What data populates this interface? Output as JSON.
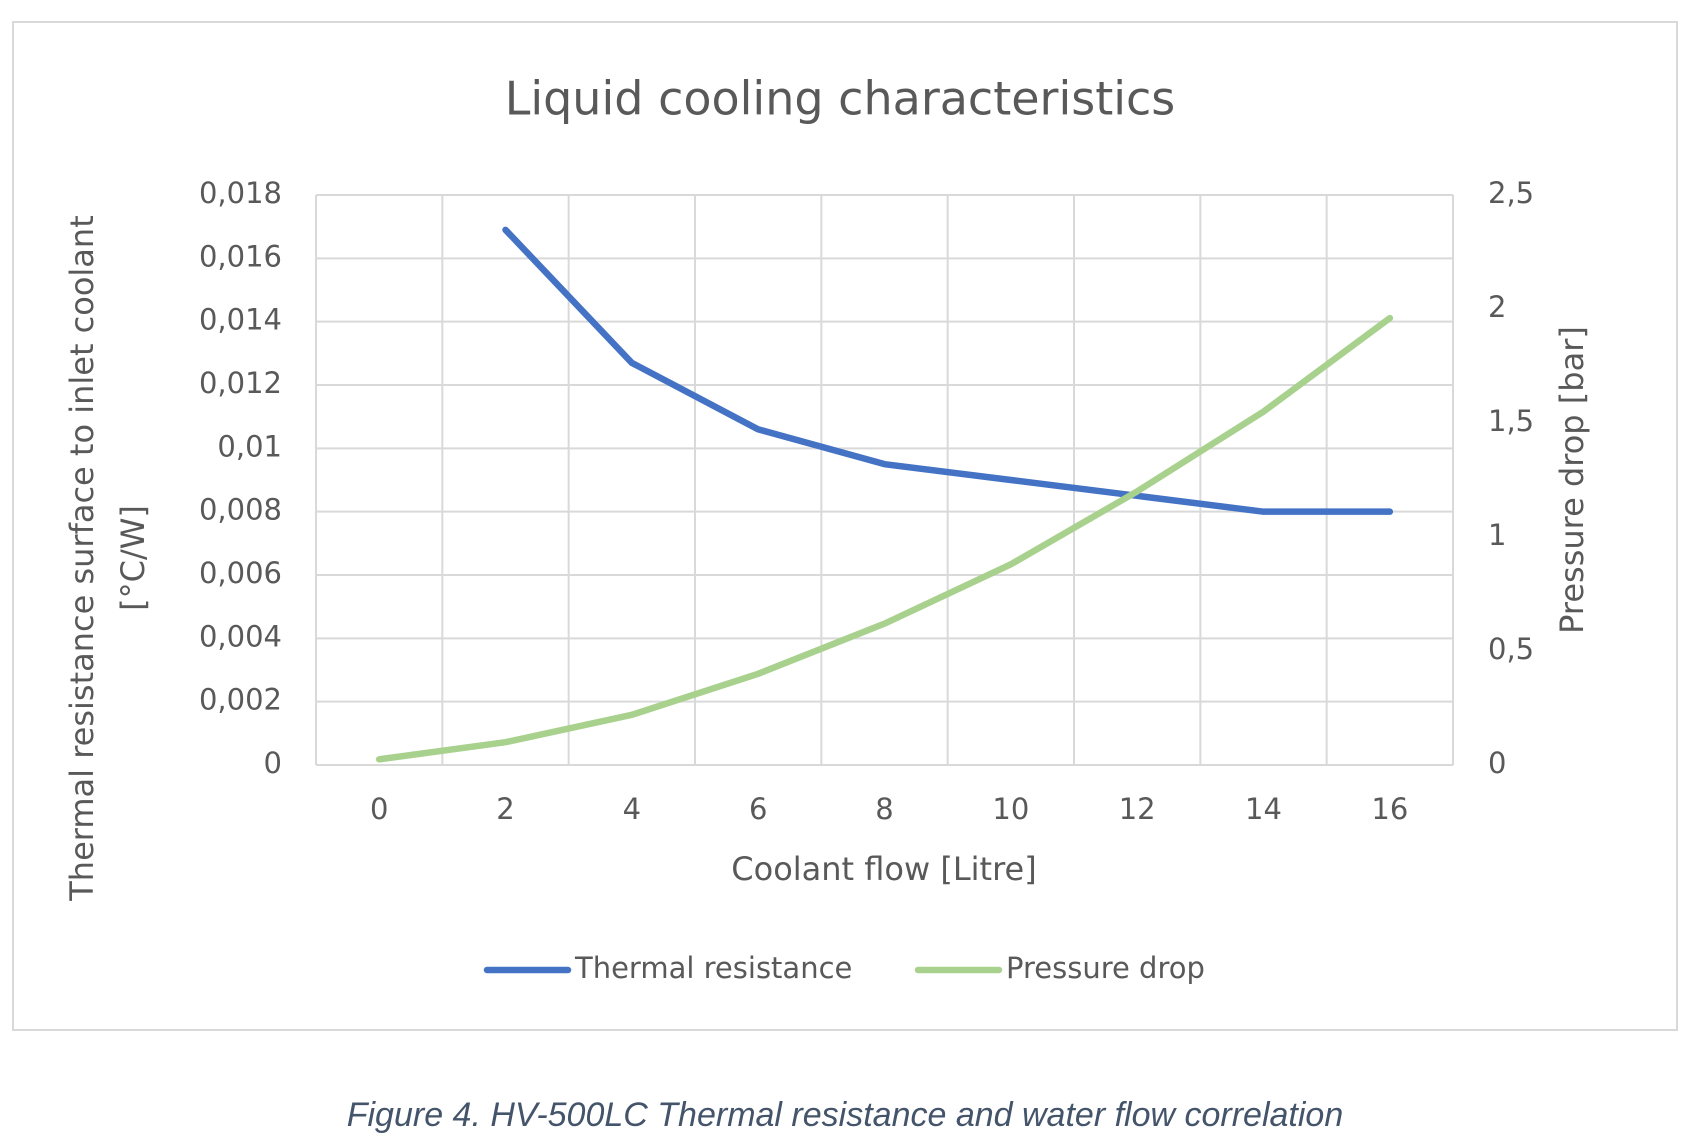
{
  "chart_data": {
    "type": "line",
    "title": "Liquid cooling characteristics",
    "categories": [
      0,
      2,
      4,
      6,
      8,
      10,
      12,
      14,
      16
    ],
    "xlabel": "Coolant flow [Litre]",
    "ylabel": [
      "Thermal resistance surface to inlet coolant",
      "[°C/W]"
    ],
    "y2label": "Pressure drop [bar]",
    "ylim": [
      0,
      0.018
    ],
    "yticks": [
      0,
      {
        "value": 0.002,
        "label": "0,002"
      },
      {
        "value": 0.004,
        "label": "0,004"
      },
      {
        "value": 0.006,
        "label": "0,006"
      },
      {
        "value": 0.008,
        "label": "0,008"
      },
      {
        "value": 0.01,
        "label": "0,01"
      },
      {
        "value": 0.012,
        "label": "0,012"
      },
      {
        "value": 0.014,
        "label": "0,014"
      },
      {
        "value": 0.016,
        "label": "0,016"
      },
      {
        "value": 0.018,
        "label": "0,018"
      }
    ],
    "y2lim": [
      0,
      2.5
    ],
    "y2ticks": [
      0,
      {
        "value": 0.5,
        "label": "0,5"
      },
      1,
      {
        "value": 1.5,
        "label": "1,5"
      },
      2,
      {
        "value": 2.5,
        "label": "2,5"
      }
    ],
    "grid": true,
    "legend": "bottom",
    "series": [
      {
        "name": "Thermal resistance",
        "color": "#4472c4",
        "values": [
          null,
          0.0169,
          0.0127,
          0.0106,
          0.0095,
          0.009,
          0.0085,
          0.008,
          0.008
        ]
      },
      {
        "name": "Pressure drop",
        "color": "#a9d18e",
        "axis": "y2",
        "values": [
          0.025,
          0.1,
          0.22,
          0.4,
          0.62,
          0.88,
          1.2,
          1.55,
          1.96
        ]
      }
    ]
  },
  "caption": "Figure 4. HV-500LC Thermal resistance and water flow correlation"
}
